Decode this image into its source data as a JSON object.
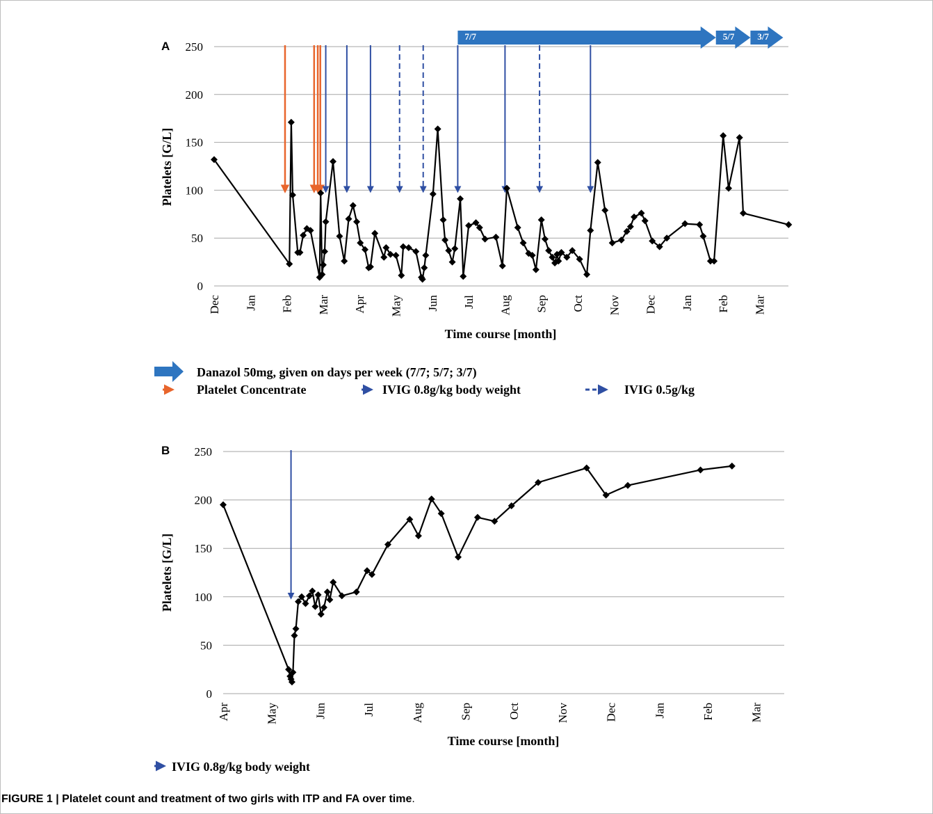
{
  "caption": {
    "bold": "FIGURE 1 | Platelet count and treatment of two girls with ITP and FA over time",
    "end": "."
  },
  "colors": {
    "line": "#000000",
    "grid": "#a6a6a6",
    "ivig": "#2f4fa3",
    "platelet_concentrate": "#e8652c",
    "danazol": "#2e75c0"
  },
  "chart_data": [
    {
      "panel": "A",
      "type": "line",
      "xlabel": "Time course [month]",
      "ylabel": "Platelets [G/L]",
      "ylim": [
        0,
        250
      ],
      "yticks": [
        0,
        50,
        100,
        150,
        200,
        250
      ],
      "grid": true,
      "xticks": [
        {
          "m": 0,
          "label": "Dec"
        },
        {
          "m": 1,
          "label": "Jan"
        },
        {
          "m": 2,
          "label": "Feb"
        },
        {
          "m": 3,
          "label": "Mar"
        },
        {
          "m": 4,
          "label": "Apr"
        },
        {
          "m": 5,
          "label": "May"
        },
        {
          "m": 6,
          "label": "Jun"
        },
        {
          "m": 7,
          "label": "Jul"
        },
        {
          "m": 8,
          "label": "Aug"
        },
        {
          "m": 9,
          "label": "Sep"
        },
        {
          "m": 10,
          "label": "Oct"
        },
        {
          "m": 11,
          "label": "Nov"
        },
        {
          "m": 12,
          "label": "Dec"
        },
        {
          "m": 13,
          "label": "Jan"
        },
        {
          "m": 14,
          "label": "Feb"
        },
        {
          "m": 15,
          "label": "Mar"
        }
      ],
      "xmax": 15.8,
      "series": [
        {
          "points": [
            [
              0,
              132
            ],
            [
              2.07,
              23
            ],
            [
              2.12,
              171
            ],
            [
              2.16,
              95
            ],
            [
              2.3,
              35
            ],
            [
              2.36,
              35
            ],
            [
              2.45,
              53
            ],
            [
              2.55,
              60
            ],
            [
              2.65,
              58
            ],
            [
              2.9,
              9
            ],
            [
              2.93,
              97
            ],
            [
              2.97,
              12
            ],
            [
              3.0,
              22
            ],
            [
              3.04,
              36
            ],
            [
              3.07,
              67
            ],
            [
              3.27,
              130
            ],
            [
              3.45,
              52
            ],
            [
              3.58,
              26
            ],
            [
              3.7,
              70
            ],
            [
              3.82,
              84
            ],
            [
              3.92,
              67
            ],
            [
              4.02,
              45
            ],
            [
              4.15,
              38
            ],
            [
              4.25,
              19
            ],
            [
              4.3,
              20
            ],
            [
              4.42,
              55
            ],
            [
              4.67,
              30
            ],
            [
              4.73,
              40
            ],
            [
              4.85,
              33
            ],
            [
              5.0,
              32
            ],
            [
              5.15,
              11
            ],
            [
              5.2,
              41
            ],
            [
              5.35,
              40
            ],
            [
              5.55,
              36
            ],
            [
              5.7,
              9
            ],
            [
              5.73,
              7
            ],
            [
              5.78,
              19
            ],
            [
              5.82,
              32
            ],
            [
              6.02,
              96
            ],
            [
              6.15,
              164
            ],
            [
              6.3,
              69
            ],
            [
              6.35,
              48
            ],
            [
              6.45,
              37
            ],
            [
              6.55,
              25
            ],
            [
              6.62,
              39
            ],
            [
              6.77,
              91
            ],
            [
              6.85,
              10
            ],
            [
              7.0,
              63
            ],
            [
              7.2,
              66
            ],
            [
              7.3,
              61
            ],
            [
              7.45,
              49
            ],
            [
              7.75,
              51
            ],
            [
              7.93,
              21
            ],
            [
              8.05,
              102
            ],
            [
              8.35,
              61
            ],
            [
              8.5,
              45
            ],
            [
              8.65,
              34
            ],
            [
              8.75,
              32
            ],
            [
              8.85,
              17
            ],
            [
              9.0,
              69
            ],
            [
              9.1,
              49
            ],
            [
              9.2,
              37
            ],
            [
              9.3,
              30
            ],
            [
              9.37,
              24
            ],
            [
              9.43,
              33
            ],
            [
              9.47,
              26
            ],
            [
              9.55,
              35
            ],
            [
              9.7,
              30
            ],
            [
              9.85,
              37
            ],
            [
              10.05,
              28
            ],
            [
              10.25,
              12
            ],
            [
              10.35,
              58
            ],
            [
              10.55,
              129
            ],
            [
              10.75,
              79
            ],
            [
              10.95,
              45
            ],
            [
              11.2,
              48
            ],
            [
              11.35,
              57
            ],
            [
              11.45,
              62
            ],
            [
              11.55,
              72
            ],
            [
              11.75,
              76
            ],
            [
              11.85,
              68
            ],
            [
              12.05,
              47
            ],
            [
              12.25,
              41
            ],
            [
              12.45,
              50
            ],
            [
              12.95,
              65
            ],
            [
              13.35,
              64
            ],
            [
              13.45,
              52
            ],
            [
              13.65,
              26
            ],
            [
              13.75,
              26
            ],
            [
              14.0,
              157
            ],
            [
              14.15,
              102
            ],
            [
              14.45,
              155
            ],
            [
              14.55,
              76
            ],
            [
              15.8,
              64
            ]
          ]
        }
      ],
      "platelet_concentrate_arrows": [
        1.95,
        2.75,
        2.85,
        2.92
      ],
      "ivig_08_arrows": [
        3.07,
        3.65,
        4.3,
        6.7,
        8.0,
        10.35
      ],
      "ivig_05_arrows": [
        5.1,
        5.75,
        8.95
      ],
      "danazol_arrows": [
        {
          "label": "7/7",
          "start": 6.7,
          "end": 13.8
        },
        {
          "label": "5/7",
          "start": 13.8,
          "end": 14.75
        },
        {
          "label": "3/7",
          "start": 14.75,
          "end": 15.65
        }
      ],
      "legend": [
        {
          "kind": "danazol",
          "label": "Danazol 50mg,  given on days per week (7/7; 5/7; 3/7)"
        },
        {
          "kind": "platelet_concentrate",
          "label": "Platelet Concentrate"
        },
        {
          "kind": "ivig_08",
          "label": "IVIG 0.8g/kg body weight"
        },
        {
          "kind": "ivig_05",
          "label": "IVIG 0.5g/kg"
        }
      ]
    },
    {
      "panel": "B",
      "type": "line",
      "xlabel": "Time course [month]",
      "ylabel": "Platelets [G/L]",
      "ylim": [
        0,
        250
      ],
      "yticks": [
        0,
        50,
        100,
        150,
        200,
        250
      ],
      "grid": true,
      "xticks": [
        {
          "m": 0,
          "label": "Apr"
        },
        {
          "m": 1,
          "label": "May"
        },
        {
          "m": 2,
          "label": "Jun"
        },
        {
          "m": 3,
          "label": "Jul"
        },
        {
          "m": 4,
          "label": "Aug"
        },
        {
          "m": 5,
          "label": "Sep"
        },
        {
          "m": 6,
          "label": "Oct"
        },
        {
          "m": 7,
          "label": "Nov"
        },
        {
          "m": 8,
          "label": "Dec"
        },
        {
          "m": 9,
          "label": "Jan"
        },
        {
          "m": 10,
          "label": "Feb"
        },
        {
          "m": 11,
          "label": "Mar"
        }
      ],
      "xmax": 11.55,
      "series": [
        {
          "points": [
            [
              0,
              195
            ],
            [
              1.35,
              25
            ],
            [
              1.38,
              18
            ],
            [
              1.4,
              15
            ],
            [
              1.42,
              12
            ],
            [
              1.44,
              22
            ],
            [
              1.47,
              60
            ],
            [
              1.5,
              67
            ],
            [
              1.55,
              95
            ],
            [
              1.62,
              100
            ],
            [
              1.7,
              93
            ],
            [
              1.78,
              101
            ],
            [
              1.84,
              106
            ],
            [
              1.9,
              90
            ],
            [
              1.96,
              102
            ],
            [
              2.02,
              82
            ],
            [
              2.08,
              89
            ],
            [
              2.15,
              105
            ],
            [
              2.2,
              97
            ],
            [
              2.27,
              115
            ],
            [
              2.45,
              101
            ],
            [
              2.75,
              105
            ],
            [
              2.97,
              127
            ],
            [
              3.07,
              123
            ],
            [
              3.4,
              154
            ],
            [
              3.85,
              180
            ],
            [
              4.03,
              163
            ],
            [
              4.3,
              201
            ],
            [
              4.5,
              186
            ],
            [
              4.85,
              141
            ],
            [
              5.25,
              182
            ],
            [
              5.6,
              178
            ],
            [
              5.95,
              194
            ],
            [
              6.5,
              218
            ],
            [
              7.5,
              233
            ],
            [
              7.9,
              205
            ],
            [
              8.35,
              215
            ],
            [
              9.85,
              231
            ],
            [
              10.5,
              235
            ]
          ]
        }
      ],
      "ivig_08_arrows": [
        1.4
      ],
      "legend": [
        {
          "kind": "ivig_08",
          "label": "IVIG 0.8g/kg body weight"
        }
      ]
    }
  ]
}
